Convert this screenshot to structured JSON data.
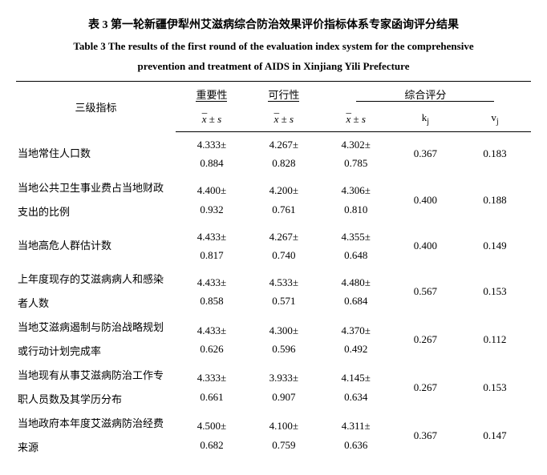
{
  "titles": {
    "cn": "表 3 第一轮新疆伊犁州艾滋病综合防治效果评价指标体系专家函询评分结果",
    "en_l1": "Table 3 The results of the first round of the evaluation index system for the comprehensive",
    "en_l2": "prevention and treatment of AIDS in Xinjiang Yili Prefecture"
  },
  "headers": {
    "col1": "三级指标",
    "importance": "重要性",
    "feasibility": "可行性",
    "composite": "综合评分",
    "xs": "x ± s",
    "kj": "kⱼ",
    "vj": "vⱼ"
  },
  "rows": [
    {
      "indicator_l1": "当地常住人口数",
      "indicator_l2": "",
      "imp_m": "4.333±",
      "imp_s": "0.884",
      "fea_m": "4.267±",
      "fea_s": "0.828",
      "com_m": "4.302±",
      "com_s": "0.785",
      "kj": "0.367",
      "vj": "0.183"
    },
    {
      "indicator_l1": "当地公共卫生事业费占当地财政",
      "indicator_l2": "支出的比例",
      "imp_m": "4.400±",
      "imp_s": "0.932",
      "fea_m": "4.200±",
      "fea_s": "0.761",
      "com_m": "4.306±",
      "com_s": "0.810",
      "kj": "0.400",
      "vj": "0.188"
    },
    {
      "indicator_l1": "当地高危人群估计数",
      "indicator_l2": "",
      "imp_m": "4.433±",
      "imp_s": "0.817",
      "fea_m": "4.267±",
      "fea_s": "0.740",
      "com_m": "4.355±",
      "com_s": "0.648",
      "kj": "0.400",
      "vj": "0.149"
    },
    {
      "indicator_l1": "上年度现存的艾滋病病人和感染",
      "indicator_l2": "者人数",
      "imp_m": "4.433±",
      "imp_s": "0.858",
      "fea_m": "4.533±",
      "fea_s": "0.571",
      "com_m": "4.480±",
      "com_s": "0.684",
      "kj": "0.567",
      "vj": "0.153"
    },
    {
      "indicator_l1": "当地艾滋病遏制与防治战略规划",
      "indicator_l2": "或行动计划完成率",
      "imp_m": "4.433±",
      "imp_s": "0.626",
      "fea_m": "4.300±",
      "fea_s": "0.596",
      "com_m": "4.370±",
      "com_s": "0.492",
      "kj": "0.267",
      "vj": "0.112"
    },
    {
      "indicator_l1": "当地现有从事艾滋病防治工作专",
      "indicator_l2": "职人员数及其学历分布",
      "imp_m": "4.333±",
      "imp_s": "0.661",
      "fea_m": "3.933±",
      "fea_s": "0.907",
      "com_m": "4.145±",
      "com_s": "0.634",
      "kj": "0.267",
      "vj": "0.153"
    },
    {
      "indicator_l1": "当地政府本年度艾滋病防治经费",
      "indicator_l2": "来源",
      "imp_m": "4.500±",
      "imp_s": "0.682",
      "fea_m": "4.100±",
      "fea_s": "0.759",
      "com_m": "4.311±",
      "com_s": "0.636",
      "kj": "0.367",
      "vj": "0.147"
    }
  ],
  "style": {
    "background": "#ffffff",
    "text_color": "#000000",
    "rule_color": "#000000",
    "font_size_pt": 13,
    "title_font_size_pt": 14,
    "col_widths_pct": [
      31,
      14,
      14,
      14,
      13,
      14
    ]
  }
}
